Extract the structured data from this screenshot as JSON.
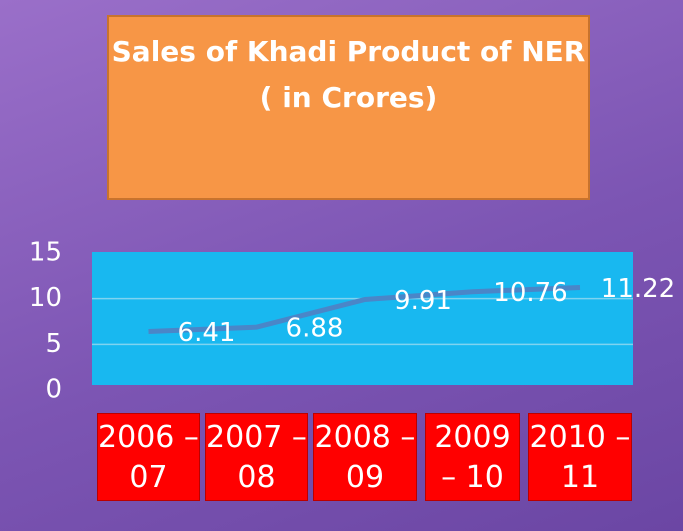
{
  "chart_data": {
    "type": "line",
    "title": "Sales of Khadi Product of NER",
    "subtitle": "( in  Crores)",
    "categories": [
      "2006 – 07",
      "2007 – 08",
      "2008 – 09",
      "2009 – 10",
      "2010 – 11"
    ],
    "values": [
      6.41,
      6.88,
      9.91,
      10.76,
      11.22
    ],
    "color": "#4a86c8",
    "ylim": [
      0,
      15
    ],
    "yticks": [
      0,
      5,
      10,
      15
    ],
    "grid": true
  }
}
